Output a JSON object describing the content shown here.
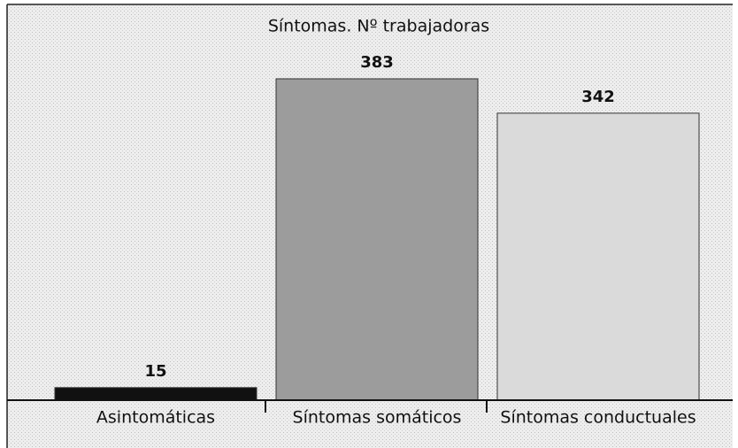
{
  "chart_data": {
    "type": "bar",
    "title": "Síntomas. Nº trabajadoras",
    "categories": [
      "Asintomáticas",
      "Síntomas somáticos",
      "Síntomas conductuales"
    ],
    "values": [
      15,
      383,
      342
    ],
    "colors": [
      "#111111",
      "#9c9c9c",
      "#dadada"
    ]
  }
}
